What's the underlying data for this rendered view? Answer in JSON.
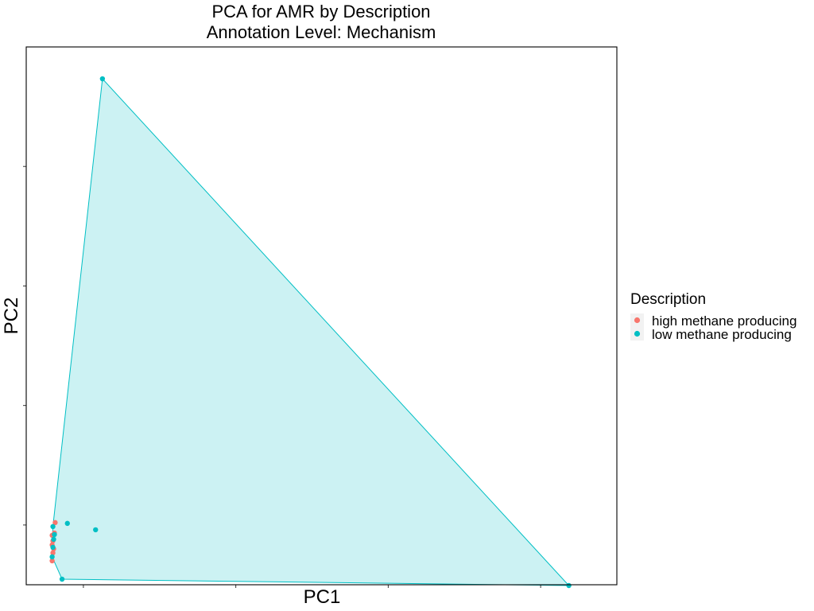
{
  "chart_data": {
    "type": "scatter",
    "title": "PCA for AMR by Description",
    "subtitle": "Annotation Level: Mechanism",
    "xlabel": "PC1",
    "ylabel": "PC2",
    "x_tick_labels_shown": false,
    "y_tick_labels_shown": false,
    "grid": false,
    "xlim": [
      -0.75,
      7.0
    ],
    "ylim": [
      -0.75,
      6.0
    ],
    "legend": {
      "title": "Description",
      "placement": "right",
      "entries": [
        "high methane producing",
        "low methane producing"
      ]
    },
    "series": [
      {
        "name": "high methane producing",
        "color": "#F8766D",
        "hull": false,
        "points": [
          {
            "x": -0.37,
            "y": 0.03
          },
          {
            "x": -0.41,
            "y": -0.13
          },
          {
            "x": -0.41,
            "y": -0.25
          },
          {
            "x": -0.39,
            "y": -0.3
          },
          {
            "x": -0.4,
            "y": -0.35
          },
          {
            "x": -0.41,
            "y": -0.45
          },
          {
            "x": -0.4,
            "y": -0.2
          },
          {
            "x": -0.38,
            "y": -0.1
          }
        ]
      },
      {
        "name": "low methane producing",
        "color": "#00BFC4",
        "hull": true,
        "hull_fill": "#00BFC4",
        "hull_fill_opacity": 0.2,
        "points": [
          {
            "x": 0.25,
            "y": 5.6
          },
          {
            "x": 6.37,
            "y": -0.76
          },
          {
            "x": -0.28,
            "y": -0.68
          },
          {
            "x": -0.4,
            "y": -0.02
          },
          {
            "x": -0.21,
            "y": 0.02
          },
          {
            "x": 0.16,
            "y": -0.06
          },
          {
            "x": -0.38,
            "y": -0.12
          },
          {
            "x": -0.39,
            "y": -0.18
          },
          {
            "x": -0.4,
            "y": -0.28
          },
          {
            "x": -0.41,
            "y": -0.4
          }
        ]
      }
    ]
  }
}
